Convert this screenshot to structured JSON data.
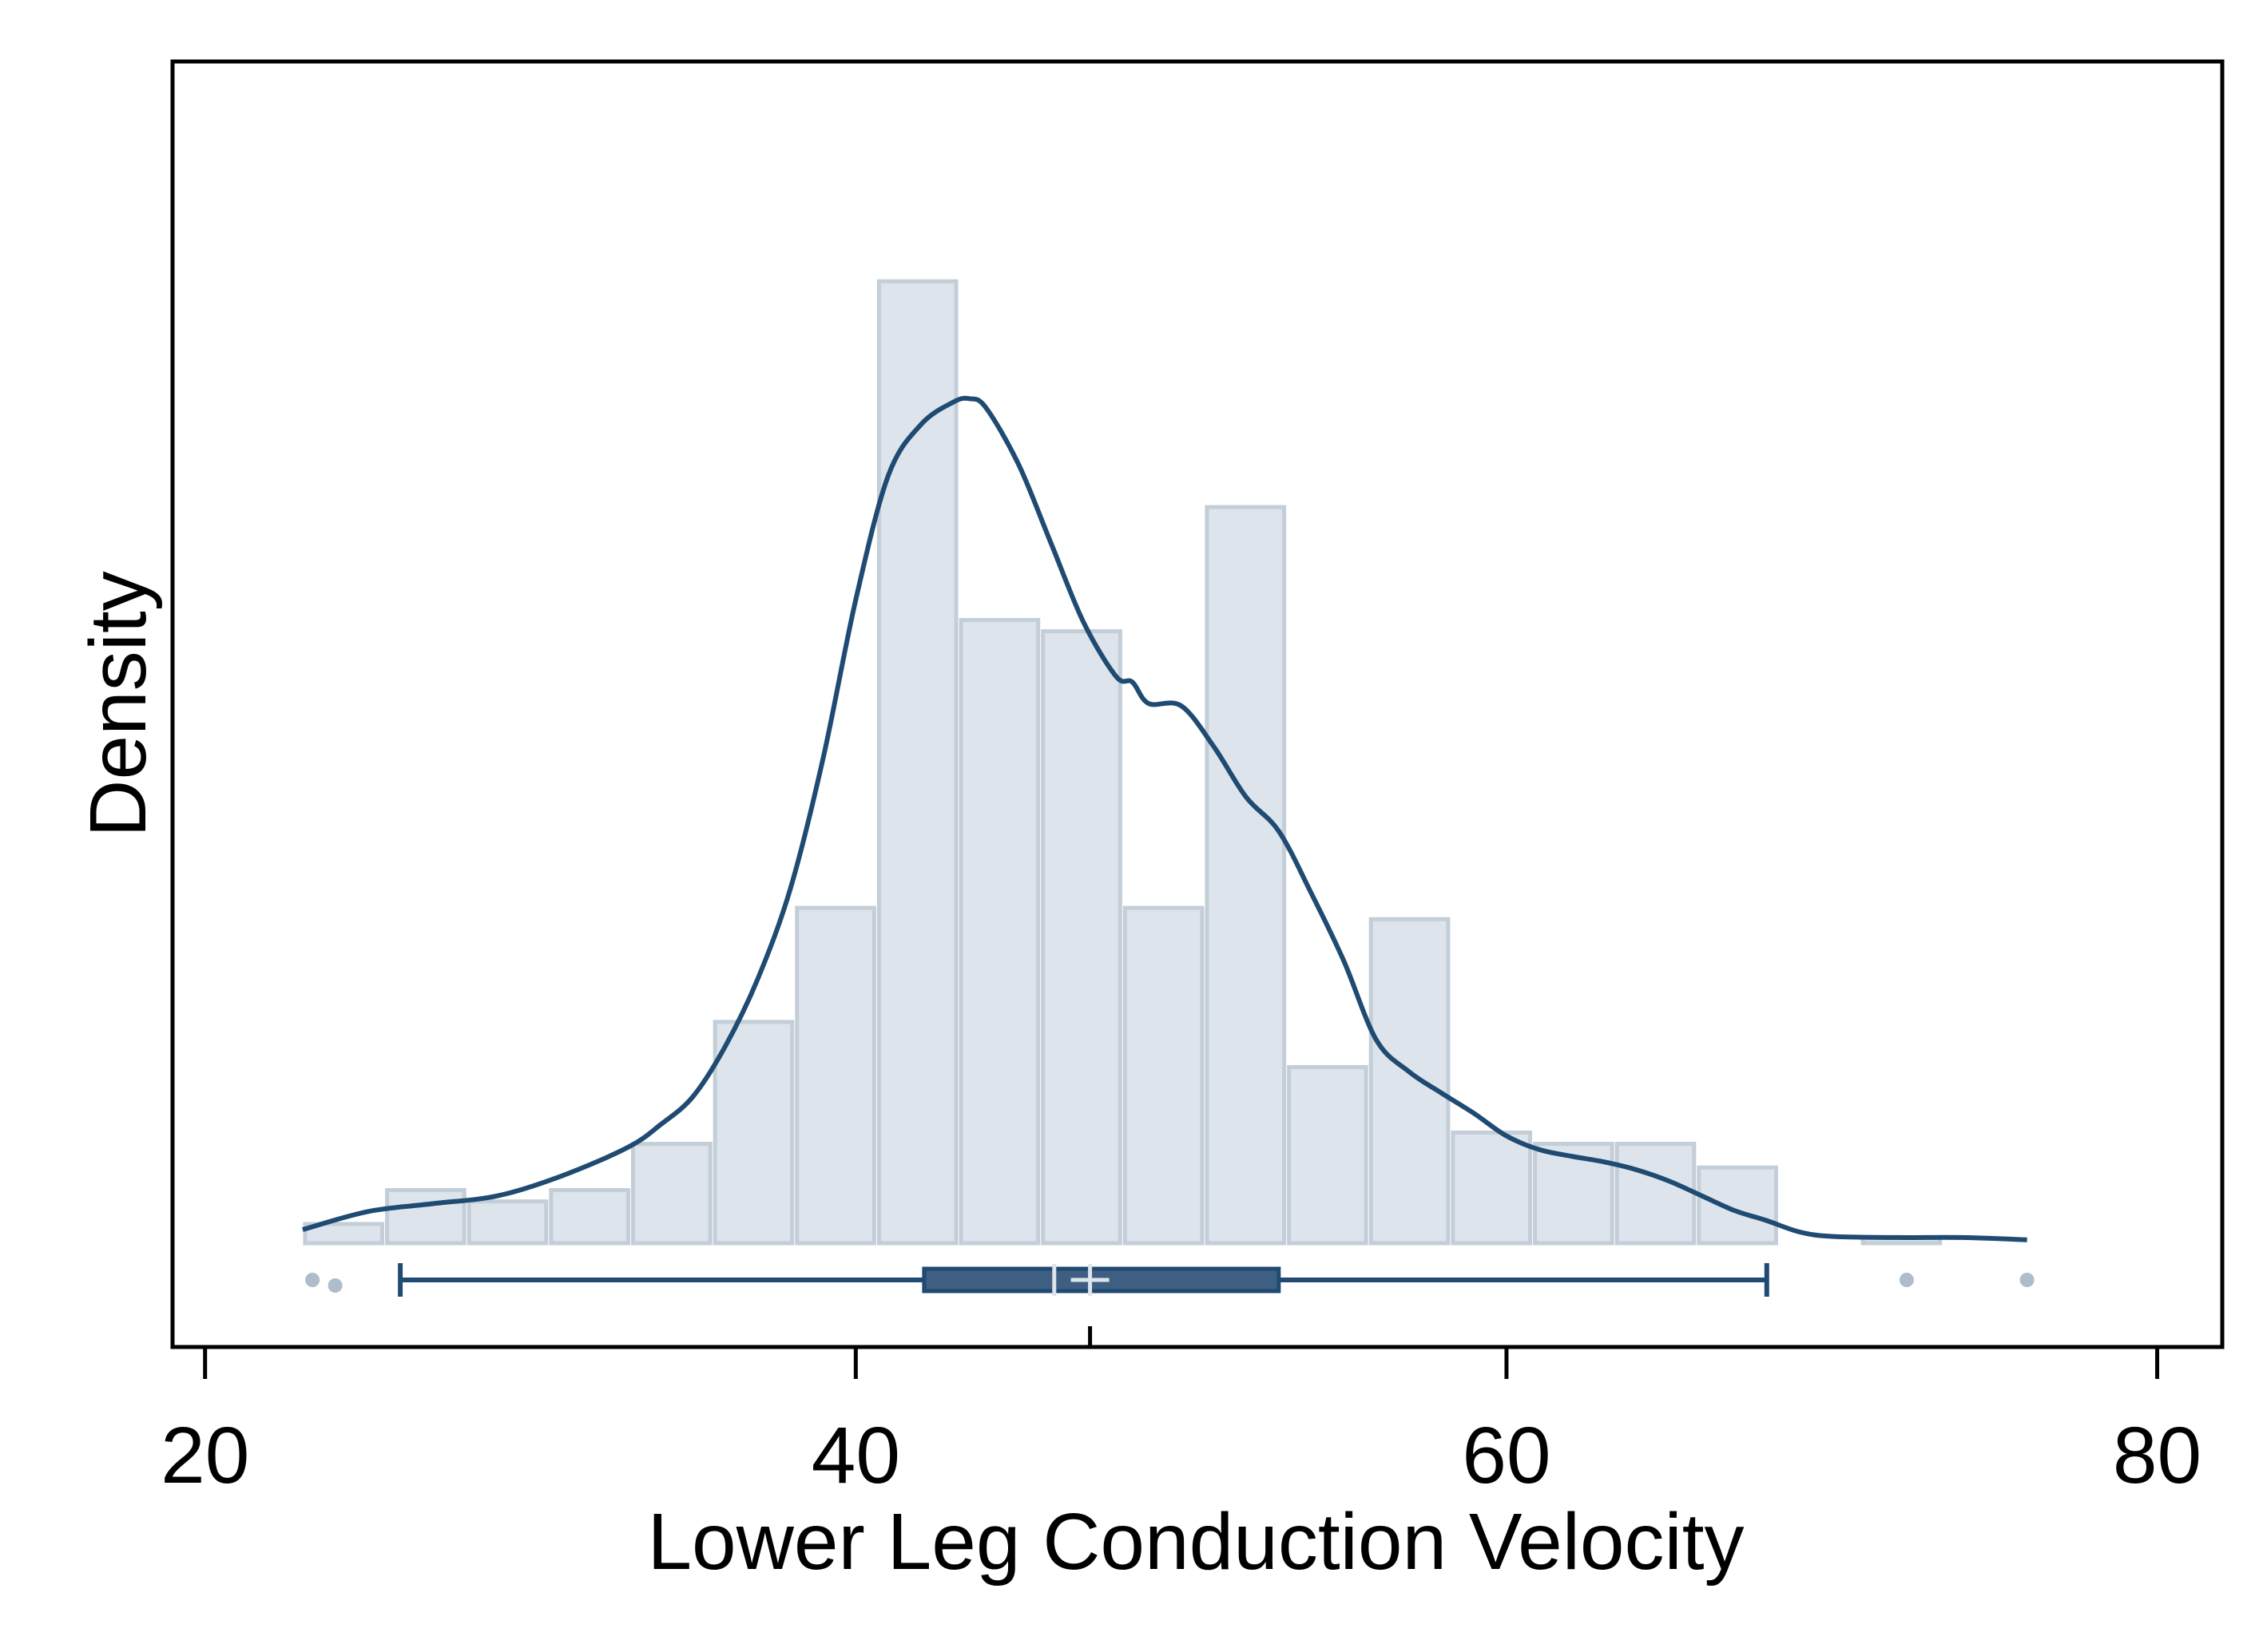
{
  "chart_data": {
    "type": "histogram",
    "title": "",
    "xlabel": "Lower Leg Conduction Velocity",
    "ylabel": "Density",
    "xlim": [
      19,
      82
    ],
    "ylim": [
      0,
      100
    ],
    "x_ticks": [
      20,
      40,
      60,
      80
    ],
    "x_tick_labels": [
      "20",
      "40",
      "60",
      "80"
    ],
    "y_ticks_shown": false,
    "grid": false,
    "legend": "none",
    "colors": {
      "bar_fill": "#dde4eb",
      "bar_stroke": "#c3ced8",
      "density_line": "#1f4a72",
      "box_fill": "#3e5f82",
      "box_stroke": "#1f4a72",
      "median_mark": "#dde4eb",
      "outlier": "#aebccb",
      "frame": "#000000"
    },
    "histogram": {
      "bin_edges": [
        23,
        25.52,
        28.04,
        30.56,
        33.08,
        35.6,
        38.12,
        40.64,
        43.16,
        45.68,
        48.2,
        50.72,
        53.24,
        55.76,
        58.28,
        60.8,
        63.32,
        65.84,
        68.36,
        70.88,
        73.4,
        75.92
      ],
      "heights": [
        1.7,
        4.7,
        3.7,
        4.7,
        8.8,
        19.6,
        29.7,
        85.2,
        55.2,
        54.2,
        29.7,
        65.2,
        15.6,
        28.7,
        9.8,
        8.8,
        8.8,
        6.7,
        0,
        0.5,
        0
      ]
    },
    "density_curve": {
      "x": [
        23,
        25,
        27,
        29,
        31,
        33,
        34,
        35,
        36,
        37,
        38,
        39,
        40,
        41,
        42,
        43,
        43.5,
        44,
        45,
        46,
        47,
        48,
        48.5,
        49,
        50,
        51,
        52,
        53,
        54,
        55,
        56,
        57,
        58,
        59,
        60,
        61,
        62,
        63,
        64,
        65,
        66,
        67,
        68,
        69,
        70,
        72,
        74,
        76
      ],
      "y": [
        1.2,
        2.8,
        3.5,
        4.2,
        6,
        8.5,
        10.5,
        13,
        17.5,
        23.5,
        31.5,
        43,
        57,
        68,
        72.5,
        74.5,
        74.8,
        74,
        69,
        62,
        55,
        50.2,
        49.7,
        47.8,
        47.6,
        44,
        39.5,
        36.5,
        31,
        25,
        18,
        15.2,
        13.3,
        11.5,
        9.5,
        8.3,
        7.7,
        7.2,
        6.5,
        5.5,
        4.2,
        2.9,
        2,
        1,
        0.6,
        0.5,
        0.5,
        0.3
      ]
    },
    "boxplot": {
      "whisker_low": 26,
      "q1": 42.1,
      "median": 46.1,
      "mean": 47.2,
      "q3": 53,
      "whisker_high": 68,
      "outliers": [
        23.3,
        24,
        72.3,
        76
      ]
    }
  }
}
